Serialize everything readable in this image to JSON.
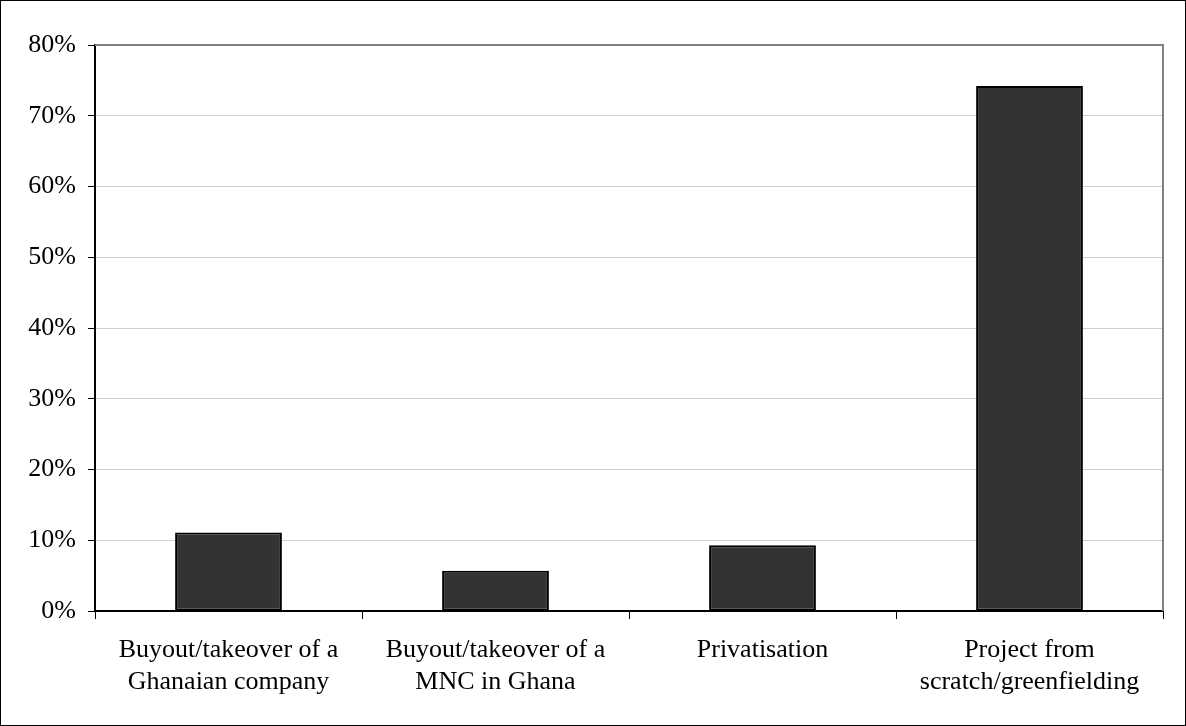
{
  "chart_data": {
    "type": "bar",
    "categories": [
      "Buyout/takeover of a Ghanaian company",
      "Buyout/takeover of a MNC in Ghana",
      "Privatisation",
      "Project from scratch/greenfielding"
    ],
    "values": [
      11.1,
      5.7,
      9.3,
      74.2
    ],
    "color": "#333333",
    "ylim": [
      0,
      80
    ],
    "yticks": [
      {
        "value": 0,
        "label": "0%"
      },
      {
        "value": 10,
        "label": "10%"
      },
      {
        "value": 20,
        "label": "20%"
      },
      {
        "value": 30,
        "label": "30%"
      },
      {
        "value": 40,
        "label": "40%"
      },
      {
        "value": 50,
        "label": "50%"
      },
      {
        "value": 60,
        "label": "60%"
      },
      {
        "value": 70,
        "label": "70%"
      },
      {
        "value": 80,
        "label": "80%"
      }
    ],
    "grid": "y"
  }
}
